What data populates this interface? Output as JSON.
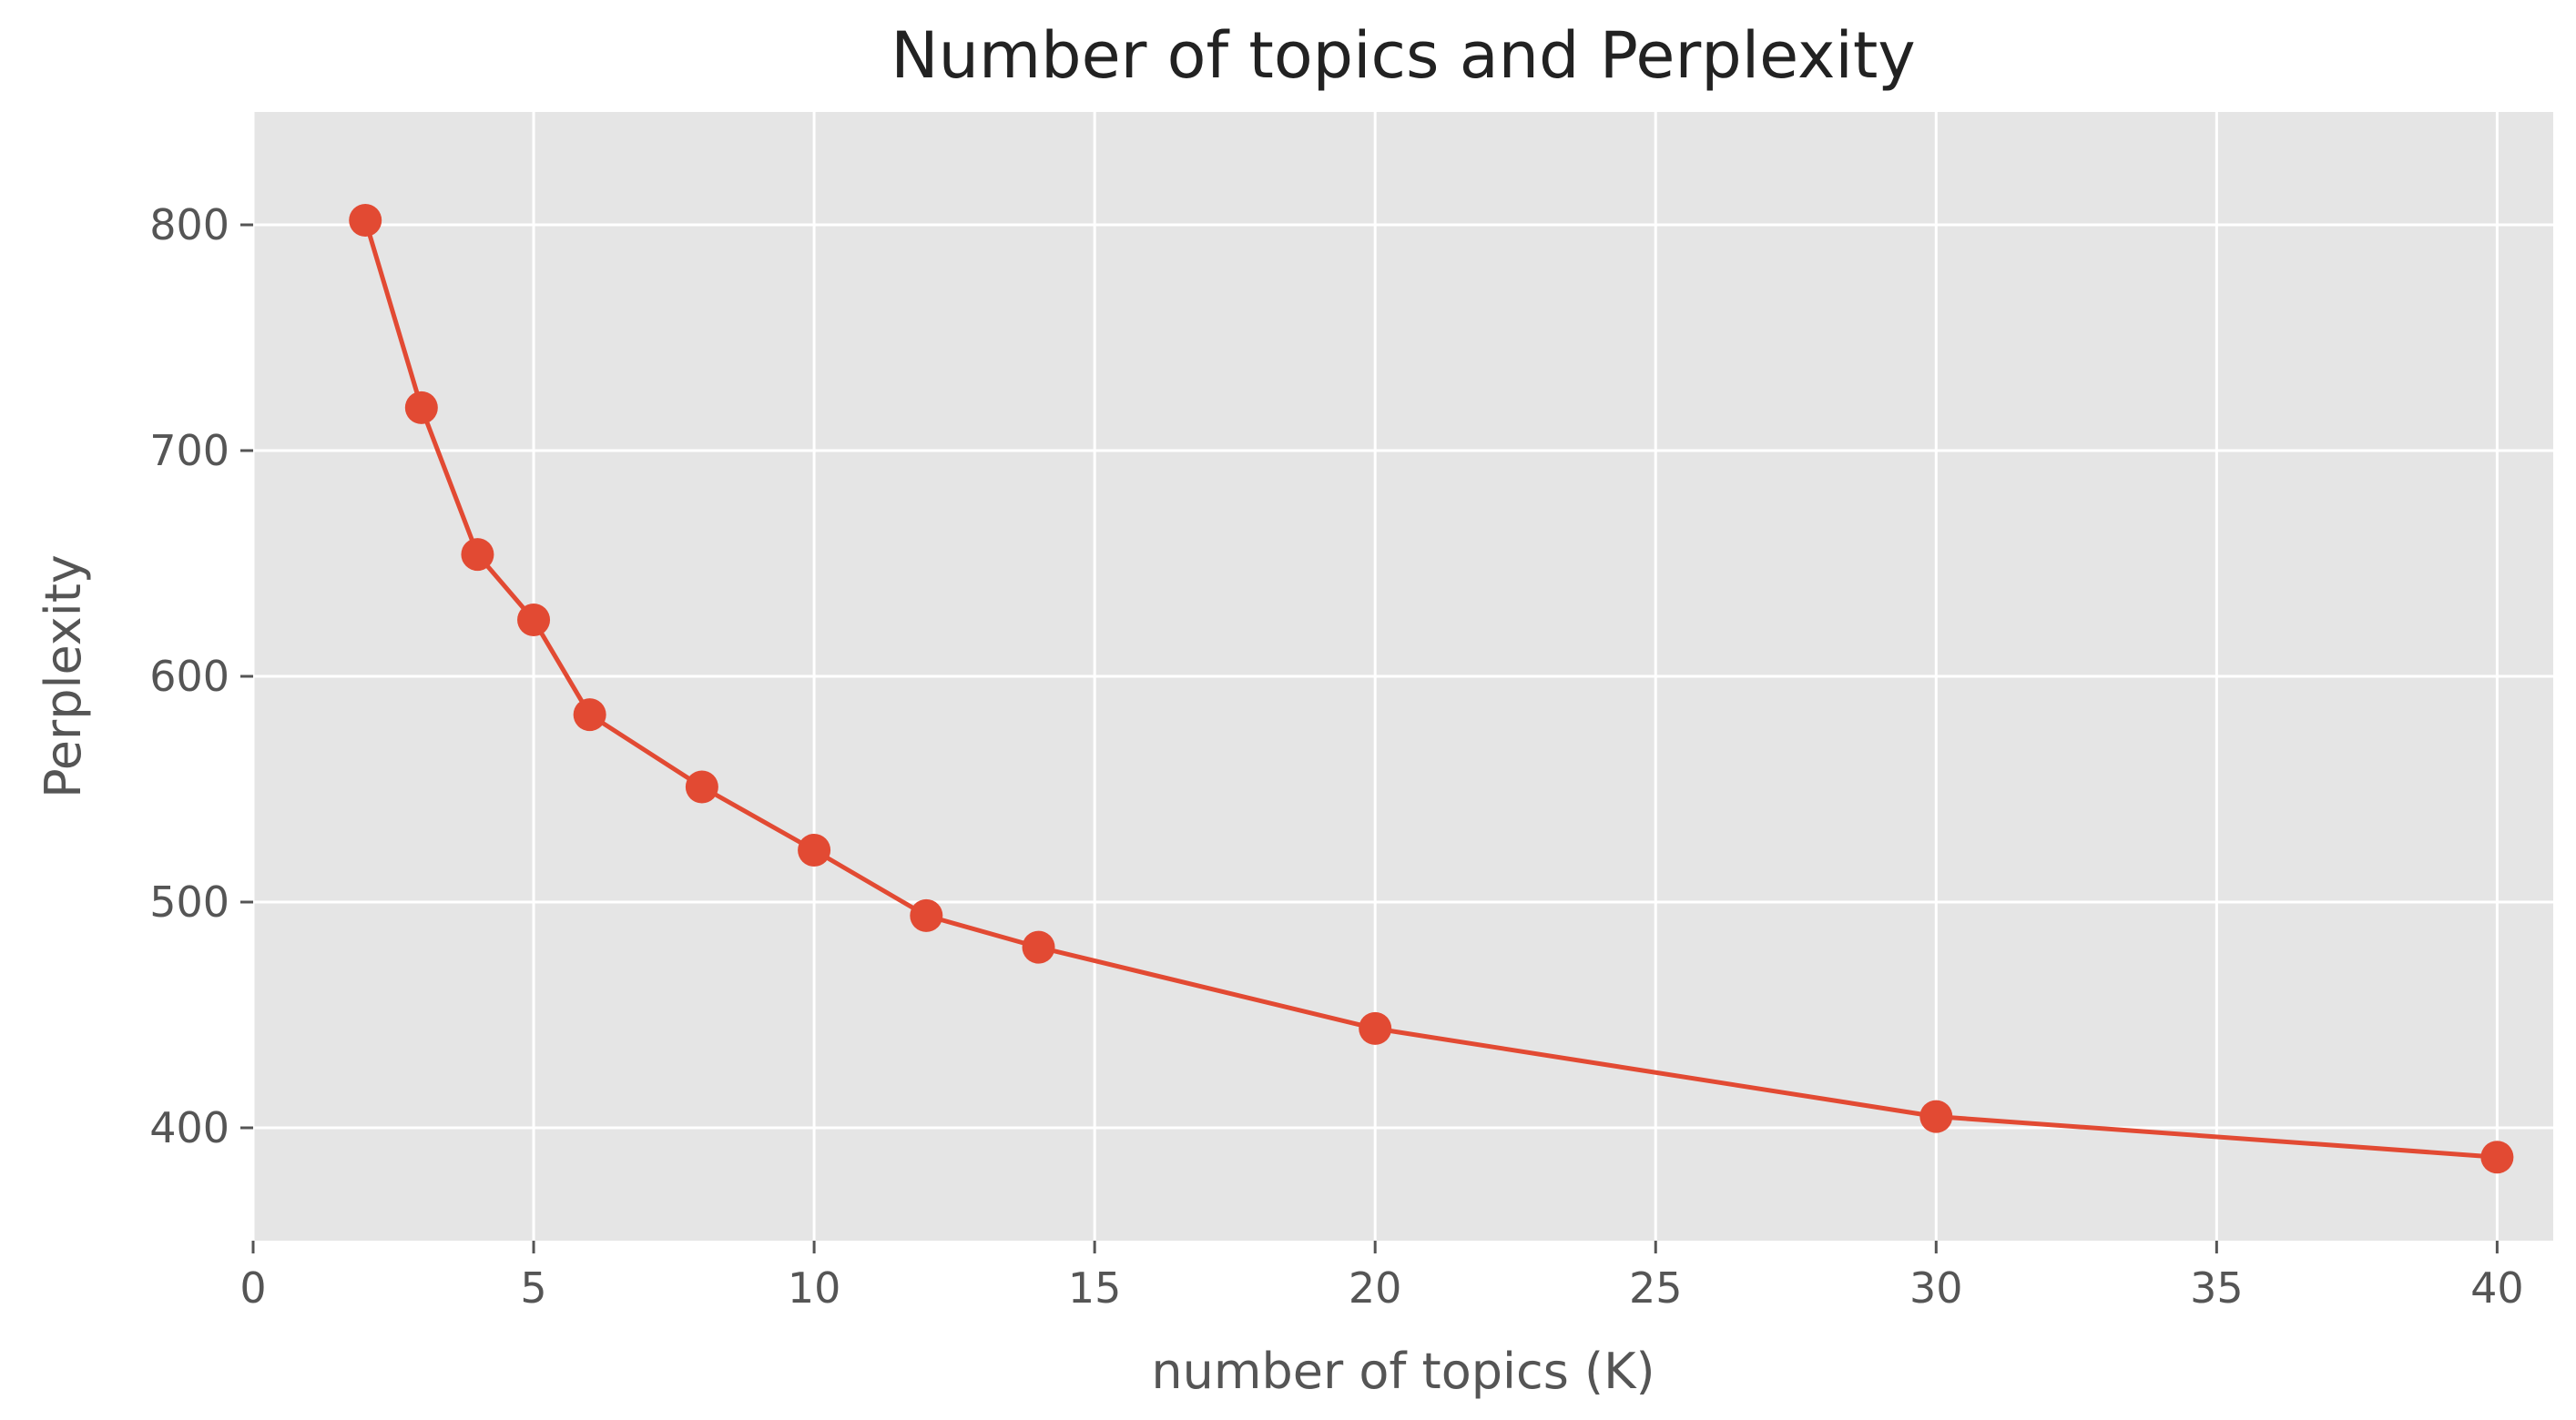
{
  "chart_data": {
    "type": "line",
    "title": "Number of topics and Perplexity",
    "xlabel": "number of topics (K)",
    "ylabel": "Perplexity",
    "xlim": [
      0,
      41
    ],
    "ylim": [
      350,
      850
    ],
    "xticks": [
      0,
      5,
      10,
      15,
      20,
      25,
      30,
      35,
      40
    ],
    "yticks": [
      400,
      500,
      600,
      700,
      800
    ],
    "grid": true,
    "colors": {
      "line": "#E24A33",
      "background": "#E5E5E5",
      "grid": "#FFFFFF"
    },
    "series": [
      {
        "x": [
          2,
          3,
          4,
          5,
          6,
          8,
          10,
          12,
          14,
          20,
          30,
          40
        ],
        "y": [
          802,
          719,
          654,
          625,
          583,
          551,
          523,
          494,
          480,
          444,
          405,
          387
        ]
      }
    ]
  }
}
